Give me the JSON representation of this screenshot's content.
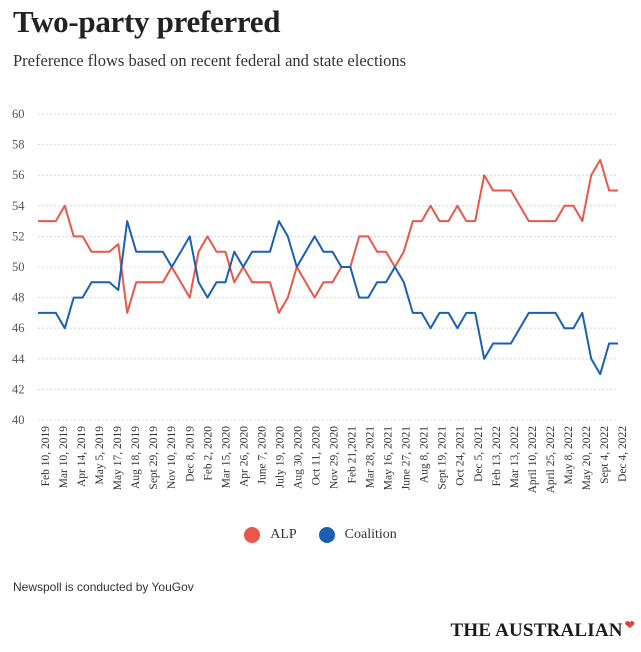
{
  "chart_data": {
    "type": "line",
    "title": "Two-party preferred",
    "subtitle": "Preference flows based on recent federal and state elections",
    "ylim": [
      40,
      60
    ],
    "yticks": [
      40,
      42,
      44,
      46,
      48,
      50,
      52,
      54,
      56,
      58,
      60
    ],
    "grid": true,
    "x_labels": [
      "Feb 10, 2019",
      "Mar 10, 2019",
      "Apr 14, 2019",
      "May 5, 2019",
      "May 17, 2019",
      "Aug 18, 2019",
      "Sept 29, 2019",
      "Nov 10, 2019",
      "Dec 8, 2019",
      "Feb 2, 2020",
      "Mar 15, 2020",
      "Apr 26, 2020",
      "June 7, 2020",
      "July 19, 2020",
      "Aug 30, 2020",
      "Oct 11, 2020",
      "Nov 29, 2020",
      "Feb 21,2021",
      "Mar 28, 2021",
      "May 16, 2021",
      "June 27, 2021",
      "Aug 8, 2021",
      "Sept 19, 2021",
      "Oct 24, 2021",
      "Dec 5, 2021",
      "Feb 13, 2022",
      "Mar 13, 2022",
      "April 10, 2022",
      "April 25, 2022",
      "May 8, 2022",
      "May 20, 2022",
      "Sept 4, 2022",
      "Dec 4, 2022"
    ],
    "series": [
      {
        "name": "ALP",
        "color": "#e8574a",
        "values": [
          53,
          53,
          53,
          54,
          52,
          52,
          51,
          51,
          51,
          51.5,
          47,
          49,
          49,
          49,
          49,
          50,
          49,
          48,
          51,
          52,
          51,
          51,
          49,
          50,
          49,
          49,
          49,
          47,
          48,
          50,
          49,
          48,
          49,
          49,
          50,
          50,
          52,
          52,
          51,
          51,
          50,
          51,
          53,
          53,
          54,
          53,
          53,
          54,
          53,
          53,
          56,
          55,
          55,
          55,
          54,
          53,
          53,
          53,
          53,
          54,
          54,
          53,
          56,
          57,
          55,
          55
        ]
      },
      {
        "name": "Coalition",
        "color": "#1a5fb4",
        "values": [
          47,
          47,
          47,
          46,
          48,
          48,
          49,
          49,
          49,
          48.5,
          53,
          51,
          51,
          51,
          51,
          50,
          51,
          52,
          49,
          48,
          49,
          49,
          51,
          50,
          51,
          51,
          51,
          53,
          52,
          50,
          51,
          52,
          51,
          51,
          50,
          50,
          48,
          48,
          49,
          49,
          50,
          49,
          47,
          47,
          46,
          47,
          47,
          46,
          47,
          47,
          44,
          45,
          45,
          45,
          46,
          47,
          47,
          47,
          47,
          46,
          46,
          47,
          44,
          43,
          45,
          45
        ]
      }
    ]
  },
  "legend": {
    "alp": "ALP",
    "coalition": "Coalition"
  },
  "footnote": "Newspoll is conducted by YouGov",
  "logo": {
    "text": "THE AUSTRALIAN"
  }
}
